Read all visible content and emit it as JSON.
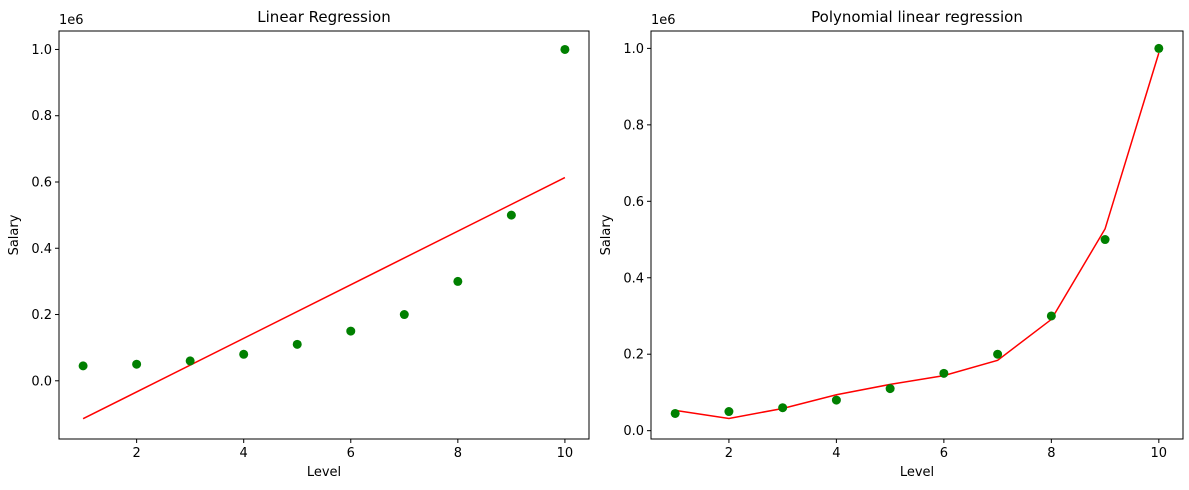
{
  "chart_data": [
    {
      "type": "scatter",
      "title": "Linear Regression",
      "xlabel": "Level",
      "ylabel": "Salary",
      "y_offset_label": "1e6",
      "xlim": [
        0.55,
        10.45
      ],
      "ylim": [
        -0.1757,
        1.0557
      ],
      "xticks": [
        2,
        4,
        6,
        8,
        10
      ],
      "yticks": [
        0.0,
        0.2,
        0.4,
        0.6,
        0.8,
        1.0
      ],
      "ytick_labels": [
        "0.0",
        "0.2",
        "0.4",
        "0.6",
        "0.8",
        "1.0"
      ],
      "grid": false,
      "scatter": {
        "color": "#008000",
        "x": [
          1,
          2,
          3,
          4,
          5,
          6,
          7,
          8,
          9,
          10
        ],
        "y": [
          0.045,
          0.05,
          0.06,
          0.08,
          0.11,
          0.15,
          0.2,
          0.3,
          0.5,
          1.0
        ]
      },
      "line": {
        "color": "#ff0000",
        "x": [
          1,
          10
        ],
        "y": [
          -0.1145,
          0.6134
        ]
      }
    },
    {
      "type": "scatter",
      "title": "Polynomial linear regression",
      "xlabel": "Level",
      "ylabel": "Salary",
      "y_offset_label": "1e6",
      "xlim": [
        0.55,
        10.45
      ],
      "ylim": [
        -0.0218,
        1.0455
      ],
      "xticks": [
        2,
        4,
        6,
        8,
        10
      ],
      "yticks": [
        0.0,
        0.2,
        0.4,
        0.6,
        0.8,
        1.0
      ],
      "ytick_labels": [
        "0.0",
        "0.2",
        "0.4",
        "0.6",
        "0.8",
        "1.0"
      ],
      "grid": false,
      "scatter": {
        "color": "#008000",
        "x": [
          1,
          2,
          3,
          4,
          5,
          6,
          7,
          8,
          9,
          10
        ],
        "y": [
          0.045,
          0.05,
          0.06,
          0.08,
          0.11,
          0.15,
          0.2,
          0.3,
          0.5,
          1.0
        ]
      },
      "line": {
        "color": "#ff0000",
        "x": [
          1,
          2,
          3,
          4,
          5,
          6,
          7,
          8,
          9,
          10
        ],
        "y": [
          0.053,
          0.032,
          0.058,
          0.094,
          0.121,
          0.144,
          0.184,
          0.291,
          0.528,
          0.988
        ]
      }
    }
  ]
}
